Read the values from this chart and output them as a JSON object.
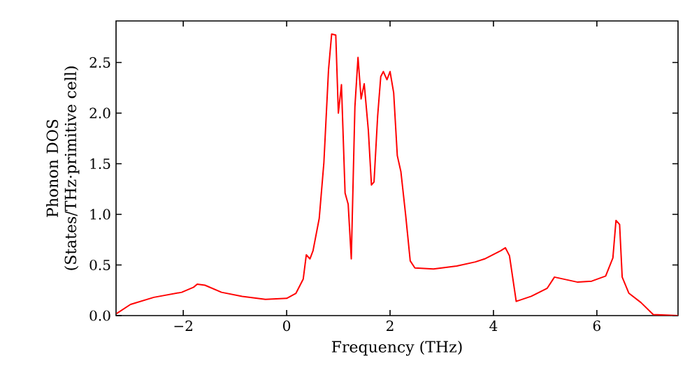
{
  "chart_data": {
    "type": "line",
    "xlabel": "Frequency (THz)",
    "ylabel": "Phonon DOS (States/THz·primitive cell)",
    "x": [
      -3.29,
      -3.02,
      -2.57,
      -2.03,
      -1.8,
      -1.73,
      -1.58,
      -1.26,
      -0.86,
      -0.41,
      0,
      0.18,
      0.32,
      0.38,
      0.45,
      0.51,
      0.63,
      0.72,
      0.81,
      0.87,
      0.95,
      1.0,
      1.06,
      1.13,
      1.19,
      1.25,
      1.32,
      1.38,
      1.44,
      1.5,
      1.58,
      1.64,
      1.69,
      1.76,
      1.82,
      1.87,
      1.94,
      2.0,
      2.07,
      2.14,
      2.21,
      2.3,
      2.39,
      2.48,
      2.84,
      3.29,
      3.65,
      3.83,
      4.14,
      4.23,
      4.31,
      4.44,
      4.73,
      5.04,
      5.18,
      5.27,
      5.45,
      5.63,
      5.9,
      6.17,
      6.31,
      6.37,
      6.44,
      6.49,
      6.62,
      6.85,
      7.09,
      7.57
    ],
    "series": [
      {
        "color": "#ff0000",
        "values": [
          0.02,
          0.11,
          0.18,
          0.23,
          0.28,
          0.31,
          0.3,
          0.23,
          0.19,
          0.16,
          0.17,
          0.22,
          0.36,
          0.6,
          0.56,
          0.64,
          0.96,
          1.51,
          2.43,
          2.78,
          2.77,
          2.0,
          2.28,
          1.21,
          1.1,
          0.56,
          2.06,
          2.55,
          2.14,
          2.29,
          1.83,
          1.29,
          1.32,
          1.97,
          2.36,
          2.41,
          2.33,
          2.41,
          2.2,
          1.58,
          1.42,
          1.0,
          0.54,
          0.47,
          0.46,
          0.49,
          0.53,
          0.56,
          0.64,
          0.67,
          0.59,
          0.14,
          0.19,
          0.27,
          0.38,
          0.37,
          0.35,
          0.33,
          0.34,
          0.39,
          0.57,
          0.94,
          0.9,
          0.38,
          0.22,
          0.13,
          0.01,
          0
        ]
      }
    ],
    "xlim": [
      -3.3,
      7.57
    ],
    "ylim": [
      0,
      2.91
    ],
    "xticks": [
      {
        "value": -2,
        "label": "−2"
      },
      0,
      2,
      4,
      6
    ],
    "yticks": [
      {
        "value": 0,
        "label": "0.0"
      },
      {
        "value": 0.5,
        "label": "0.5"
      },
      {
        "value": 1,
        "label": "1.0"
      },
      {
        "value": 1.5,
        "label": "1.5"
      },
      {
        "value": 2,
        "label": "2.0"
      },
      {
        "value": 2.5,
        "label": "2.5"
      }
    ]
  }
}
